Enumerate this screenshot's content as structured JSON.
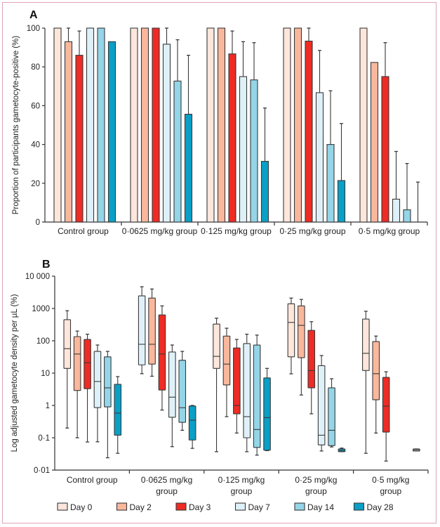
{
  "chart_data": [
    {
      "panel": "A",
      "type": "bar",
      "ylabel": "Proportion of participants gametocyte-positive (%)",
      "xlabel": "",
      "ylim": [
        0,
        100
      ],
      "yticks": [
        0,
        20,
        40,
        60,
        80,
        100
      ],
      "grid": false,
      "categories": [
        "Control group",
        "0·0625 mg/kg group",
        "0·125 mg/kg group",
        "0·25 mg/kg group",
        "0·5 mg/kg group"
      ],
      "series": [
        {
          "name": "Day 0",
          "values": [
            100,
            100,
            100,
            100,
            100
          ],
          "error_upper": [
            null,
            null,
            null,
            null,
            null
          ]
        },
        {
          "name": "Day 2",
          "values": [
            93,
            100,
            100,
            100,
            82.3
          ],
          "error_upper": [
            100,
            null,
            null,
            null,
            null
          ]
        },
        {
          "name": "Day 3",
          "values": [
            86,
            100,
            86.7,
            93.3,
            75
          ],
          "error_upper": [
            98.5,
            null,
            98.5,
            100,
            92.5
          ]
        },
        {
          "name": "Day 7",
          "values": [
            100,
            91.7,
            75,
            66.7,
            11.8
          ],
          "error_upper": [
            null,
            100,
            93,
            88.5,
            36.4
          ]
        },
        {
          "name": "Day 14",
          "values": [
            100,
            72.7,
            73.3,
            40,
            6.3
          ],
          "error_upper": [
            null,
            94,
            92.5,
            67.7,
            30.2
          ]
        },
        {
          "name": "Day 28",
          "values": [
            93,
            55.6,
            31.3,
            21.4,
            0
          ],
          "error_upper": [
            null,
            86,
            58.8,
            50.8,
            20.6
          ]
        }
      ]
    },
    {
      "panel": "B",
      "type": "box",
      "ylabel": "Log adjusted gametocyte density per µL (%)",
      "xlabel": "",
      "yscale": "log",
      "ylim": [
        0.01,
        10000
      ],
      "yticks": [
        0.01,
        0.1,
        1,
        10,
        100,
        1000,
        10000
      ],
      "ytick_labels": [
        "0·01",
        "0·1",
        "1",
        "10",
        "100",
        "1000",
        "10 000"
      ],
      "grid": false,
      "categories": [
        "Control group",
        "0·0625 mg/kg group",
        "0·125 mg/kg group",
        "0·25 mg/kg group",
        "0·5 mg/kg group"
      ],
      "category_lines": [
        [
          "Control group"
        ],
        [
          "0·0625 mg/kg",
          "group"
        ],
        [
          "0·125 mg/kg",
          "group"
        ],
        [
          "0·25 mg/kg",
          "group"
        ],
        [
          "0·5 mg/kg",
          "group"
        ]
      ],
      "series": [
        {
          "name": "Day 0",
          "boxes": [
            {
              "whisker_low": 0.2,
              "q1": 14,
              "median": 57,
              "q3": 450,
              "whisker_high": 850
            },
            {
              "whisker_low": 9.6,
              "q1": 18,
              "median": 78,
              "q3": 2450,
              "whisker_high": 4700,
              "fill_override": "day7"
            },
            {
              "whisker_low": 0.037,
              "q1": 14,
              "median": 33,
              "q3": 330,
              "whisker_high": 500
            },
            {
              "whisker_low": 9.5,
              "q1": 32,
              "median": 370,
              "q3": 1400,
              "whisker_high": 2100
            },
            {
              "whisker_low": 0.033,
              "q1": 12,
              "median": 41,
              "q3": 470,
              "whisker_high": 820
            }
          ]
        },
        {
          "name": "Day 2",
          "boxes": [
            {
              "whisker_low": 0.1,
              "q1": 2.9,
              "median": 39,
              "q3": 135,
              "whisker_high": 200
            },
            {
              "whisker_low": 8,
              "q1": 19,
              "median": 78,
              "q3": 2100,
              "whisker_high": 4000
            },
            {
              "whisker_low": 0.45,
              "q1": 4.3,
              "median": 19,
              "q3": 140,
              "whisker_high": 245
            },
            {
              "whisker_low": 2.1,
              "q1": 30,
              "median": 300,
              "q3": 1200,
              "whisker_high": 1900
            },
            {
              "whisker_low": 0.14,
              "q1": 1.5,
              "median": 9.6,
              "q3": 95,
              "whisker_high": 140
            }
          ]
        },
        {
          "name": "Day 3",
          "boxes": [
            {
              "whisker_low": 0.074,
              "q1": 3.3,
              "median": 21,
              "q3": 110,
              "whisker_high": 160
            },
            {
              "whisker_low": 0.72,
              "q1": 3,
              "median": 39,
              "q3": 630,
              "whisker_high": 1200
            },
            {
              "whisker_low": 0.14,
              "q1": 0.55,
              "median": 1.0,
              "q3": 60,
              "whisker_high": 110
            },
            {
              "whisker_low": 0.55,
              "q1": 3.5,
              "median": 12,
              "q3": 210,
              "whisker_high": 390
            },
            {
              "whisker_low": 0.019,
              "q1": 0.15,
              "median": 0.95,
              "q3": 7.4,
              "whisker_high": 11
            }
          ]
        },
        {
          "name": "Day 7",
          "boxes": [
            {
              "whisker_low": 0.075,
              "q1": 0.86,
              "median": 5.5,
              "q3": 47,
              "whisker_high": 74
            },
            {
              "whisker_low": 0.053,
              "q1": 0.43,
              "median": 1.8,
              "q3": 45,
              "whisker_high": 74
            },
            {
              "whisker_low": 0.037,
              "q1": 0.1,
              "median": 0.45,
              "q3": 82,
              "whisker_high": 160
            },
            {
              "whisker_low": 0.039,
              "q1": 0.06,
              "median": 0.12,
              "q3": 17,
              "whisker_high": 35
            },
            null
          ]
        },
        {
          "name": "Day 14",
          "boxes": [
            {
              "whisker_low": 0.024,
              "q1": 0.9,
              "median": 3.5,
              "q3": 32,
              "whisker_high": 47
            },
            {
              "whisker_low": 0.17,
              "q1": 0.3,
              "median": 0.85,
              "q3": 25,
              "whisker_high": 47
            },
            {
              "whisker_low": 0.029,
              "q1": 0.05,
              "median": 0.18,
              "q3": 74,
              "whisker_high": 150
            },
            {
              "whisker_low": 0.052,
              "q1": 0.057,
              "median": 0.17,
              "q3": 3.5,
              "whisker_high": 6.7
            },
            null
          ]
        },
        {
          "name": "Day 28",
          "boxes": [
            {
              "whisker_low": 0.033,
              "q1": 0.12,
              "median": 0.58,
              "q3": 4.5,
              "whisker_high": 7.8
            },
            {
              "whisker_low": 0.047,
              "q1": 0.085,
              "median": 0.35,
              "q3": 0.96,
              "whisker_high": 1.0
            },
            {
              "whisker_low": 0.04,
              "q1": 0.041,
              "median": 0.42,
              "q3": 7.1,
              "whisker_high": 14
            },
            {
              "whisker_low": 0.037,
              "q1": 0.037,
              "median": 0.04,
              "q3": 0.045,
              "whisker_high": 0.048
            },
            {
              "whisker_low": 0.039,
              "q1": 0.039,
              "median": 0.042,
              "q3": 0.045,
              "whisker_high": 0.045,
              "fill_override": "white"
            }
          ]
        }
      ]
    }
  ],
  "legend": {
    "position": "bottom",
    "items": [
      {
        "label": "Day 0",
        "key": "day0",
        "color": "#fde6dc"
      },
      {
        "label": "Day 2",
        "key": "day2",
        "color": "#f9b79c"
      },
      {
        "label": "Day 3",
        "key": "day3",
        "color": "#ee2b24"
      },
      {
        "label": "Day 7",
        "key": "day7",
        "color": "#dff1f8"
      },
      {
        "label": "Day 14",
        "key": "day14",
        "color": "#94d5e8"
      },
      {
        "label": "Day 28",
        "key": "day28",
        "color": "#0a9fc6"
      }
    ]
  },
  "colors": {
    "frame": "#e0a3b5",
    "axis": "#333333",
    "outline": "#3a3a3a",
    "white": "#f3f3f3"
  }
}
